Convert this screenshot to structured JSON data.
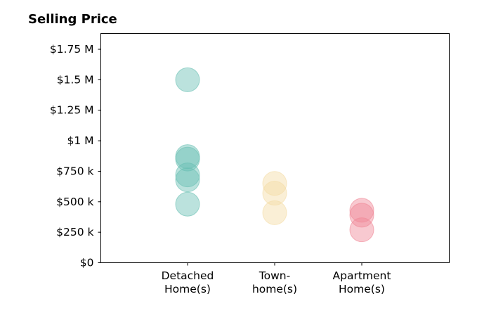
{
  "chart_data": {
    "type": "scatter",
    "title": "Selling Price",
    "xlabel": "",
    "ylabel": "",
    "categories": [
      [
        "Detached",
        "Home(s)"
      ],
      [
        "Town-",
        "home(s)"
      ],
      [
        "Apartment",
        "Home(s)"
      ]
    ],
    "y_ticks": [
      {
        "value": 0,
        "label": "$0"
      },
      {
        "value": 250000,
        "label": "$250 k"
      },
      {
        "value": 500000,
        "label": "$500 k"
      },
      {
        "value": 750000,
        "label": "$750 k"
      },
      {
        "value": 1000000,
        "label": "$1 M"
      },
      {
        "value": 1250000,
        "label": "$1.25 M"
      },
      {
        "value": 1500000,
        "label": "$1.5 M"
      },
      {
        "value": 1750000,
        "label": "$1.75 M"
      }
    ],
    "ylim": [
      0,
      1880000
    ],
    "grid": false,
    "series": [
      {
        "category": 0,
        "color": "#69bfb3",
        "values": [
          1500000,
          870000,
          850000,
          720000,
          680000,
          480000
        ]
      },
      {
        "category": 1,
        "color": "#f3dca5",
        "values": [
          650000,
          570000,
          410000
        ]
      },
      {
        "category": 2,
        "color": "#f08796",
        "values": [
          430000,
          390000,
          270000
        ]
      }
    ]
  }
}
